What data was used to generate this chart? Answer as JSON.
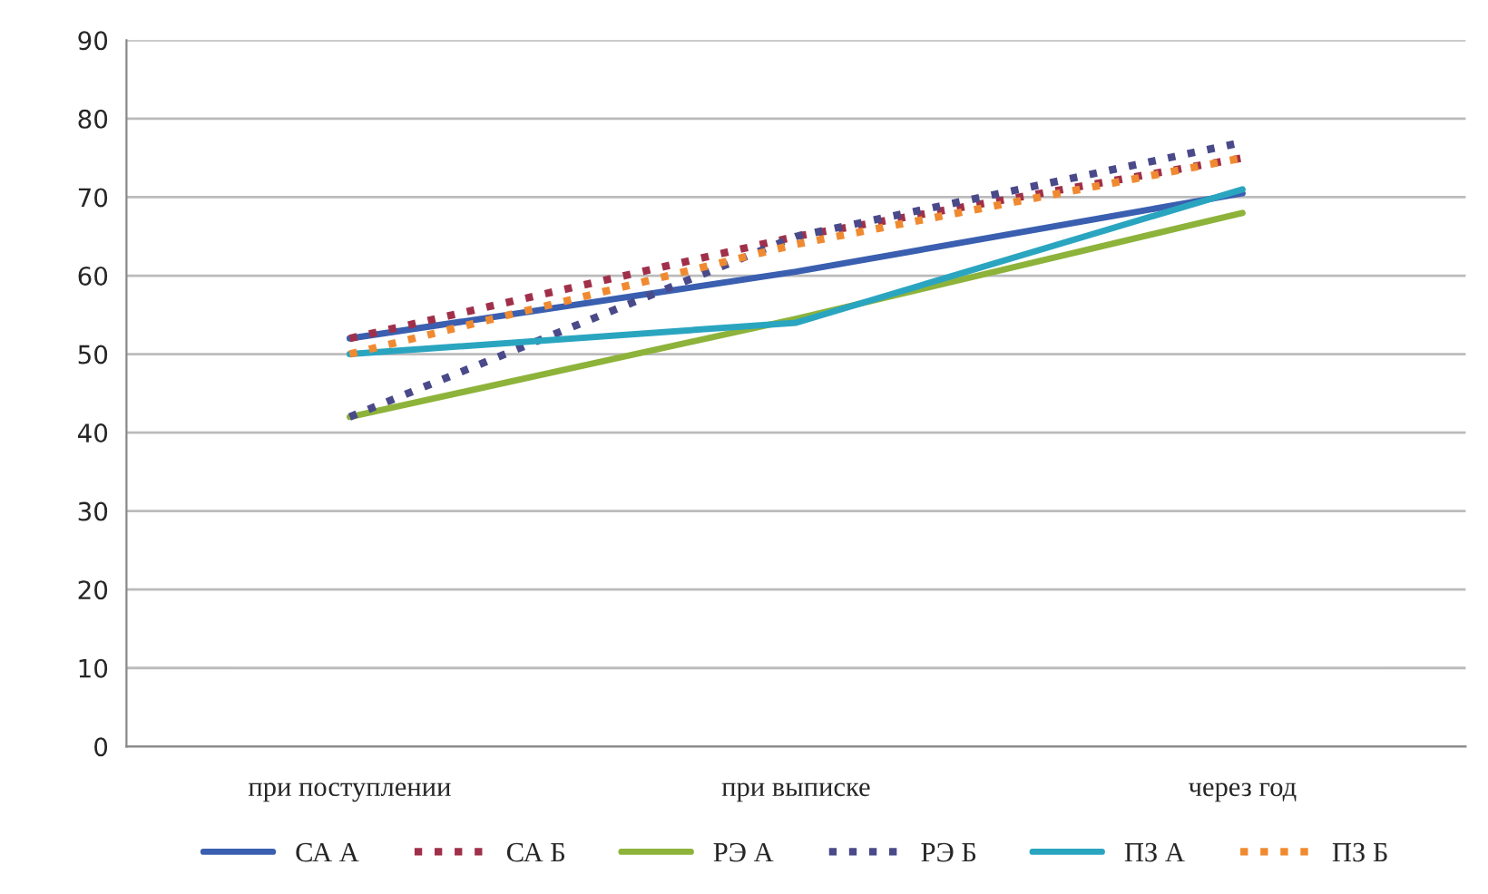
{
  "chart_data": {
    "type": "line",
    "categories": [
      "при поступлении",
      "при выписке",
      "через год"
    ],
    "series": [
      {
        "name": "СА А",
        "color": "#3a5fb0",
        "line_style": "solid",
        "values": [
          52,
          60.5,
          70.5
        ]
      },
      {
        "name": "СА Б",
        "color": "#a0304a",
        "line_style": "dotted",
        "values": [
          52,
          65,
          75
        ]
      },
      {
        "name": "РЭ А",
        "color": "#8db33a",
        "line_style": "solid",
        "values": [
          42,
          54.5,
          68
        ]
      },
      {
        "name": "РЭ Б",
        "color": "#4a4a8a",
        "line_style": "dotted",
        "values": [
          42,
          65,
          77
        ]
      },
      {
        "name": "ПЗ А",
        "color": "#2aa5c0",
        "line_style": "solid",
        "values": [
          50,
          54,
          71
        ]
      },
      {
        "name": "ПЗ Б",
        "color": "#f08a30",
        "line_style": "dotted",
        "values": [
          50,
          64,
          75
        ]
      }
    ],
    "ylim": [
      0,
      90
    ],
    "yticks": [
      0,
      10,
      20,
      30,
      40,
      50,
      60,
      70,
      80,
      90
    ],
    "grid": "y",
    "legend": "bottom",
    "marker": "none"
  }
}
